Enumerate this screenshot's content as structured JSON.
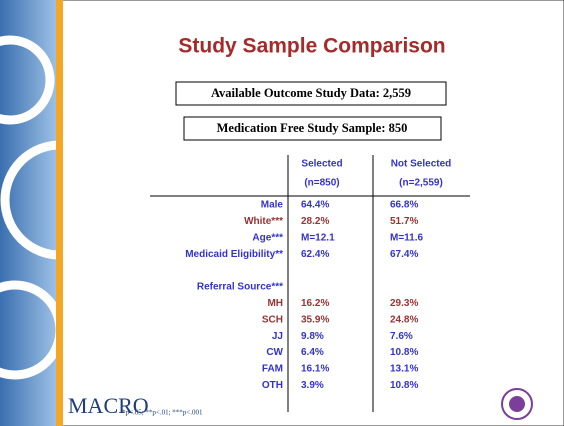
{
  "title": "Study Sample Comparison",
  "boxes": [
    "Available Outcome Study Data: 2,559",
    "Medication Free Study Sample: 850"
  ],
  "table": {
    "columns": [
      [
        "Selected",
        "(n=850)"
      ],
      [
        "Not Selected",
        "(n=2,559)"
      ]
    ],
    "rows": [
      {
        "label": "Male",
        "values": [
          "64.4%",
          "66.8%"
        ],
        "color": "#3333cc"
      },
      {
        "label": "White***",
        "values": [
          "28.2%",
          "51.7%"
        ],
        "color": "#993333"
      },
      {
        "label": "Age***",
        "values": [
          "M=12.1",
          "M=11.6"
        ],
        "color": "#3333cc"
      },
      {
        "label": "Medicaid Eligibility**",
        "values": [
          "62.4%",
          "67.4%"
        ],
        "color": "#3333cc"
      }
    ],
    "section_label": "Referral Source***",
    "section_rows": [
      {
        "label": "MH",
        "values": [
          "16.2%",
          "29.3%"
        ],
        "color": "#993333"
      },
      {
        "label": "SCH",
        "values": [
          "35.9%",
          "24.8%"
        ],
        "color": "#993333"
      },
      {
        "label": "JJ",
        "values": [
          "9.8%",
          "7.6%"
        ],
        "color": "#3333cc"
      },
      {
        "label": "CW",
        "values": [
          "6.4%",
          "10.8%"
        ],
        "color": "#3333cc"
      },
      {
        "label": "FAM",
        "values": [
          "16.1%",
          "13.1%"
        ],
        "color": "#3333cc"
      },
      {
        "label": "OTH",
        "values": [
          "3.9%",
          "10.8%"
        ],
        "color": "#3333cc"
      }
    ]
  },
  "footer": {
    "logo": "MACRO",
    "footnote": "*p<.05; **p<.01; ***p<.001"
  }
}
